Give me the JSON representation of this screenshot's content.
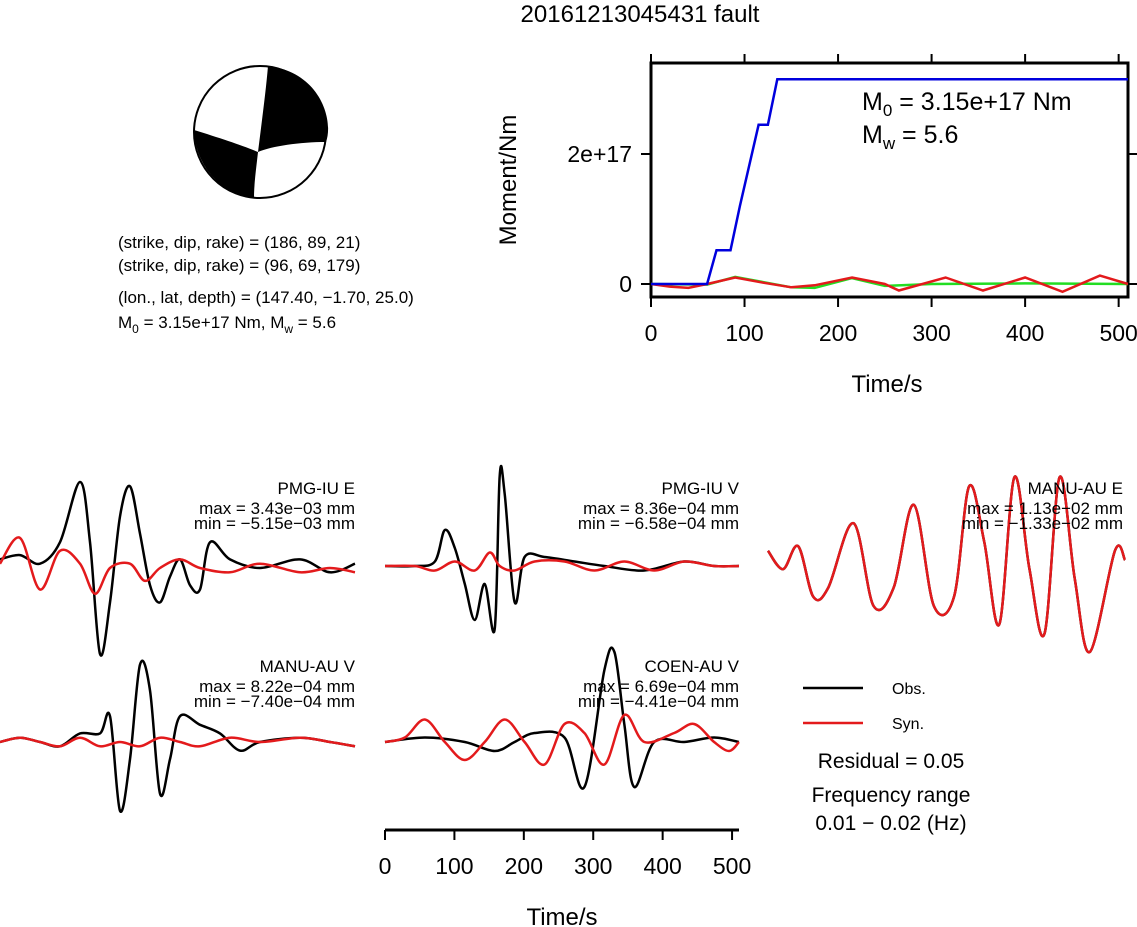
{
  "title": "20161213045431 fault",
  "info": {
    "line1": "(strike, dip, rake) = (186, 89, 21)",
    "line2": "(strike, dip, rake) = (96, 69, 179)",
    "line3": "(lon., lat, depth) = (147.40, −1.70, 25.0)",
    "m0_label": "M",
    "m0_sub": "0",
    "m0_rest": " = 3.15e+17 Nm, M",
    "mw_sub": "w",
    "mw_rest": " = 5.6"
  },
  "colors": {
    "obs": "#000000",
    "syn": "#e31a1c",
    "moment": "#0000dd",
    "green": "#22dd22"
  },
  "chart_data": [
    {
      "type": "line",
      "ylabel": "Moment/Nm",
      "xlabel": "Time/s",
      "xlim": [
        0,
        510
      ],
      "ylim": [
        -2e+16,
        3.4e+17
      ],
      "xticks": [
        "0",
        "100",
        "200",
        "300",
        "400",
        "500"
      ],
      "yticks": [
        "0",
        "2e+17"
      ],
      "annotation": {
        "m0_label": "M",
        "m0_sub": "0",
        "m0_value": " = 3.15e+17 Nm",
        "mw_label": "M",
        "mw_sub": "w",
        "mw_value": " = 5.6"
      },
      "series": [
        {
          "color": "blue",
          "x": [
            0,
            60,
            70,
            85,
            95,
            115,
            125,
            135,
            140,
            510
          ],
          "y": [
            0,
            0,
            5.2e+16,
            5.2e+16,
            1.2e+17,
            2.45e+17,
            2.45e+17,
            3.15e+17,
            3.15e+17,
            3.15e+17
          ]
        },
        {
          "color": "red",
          "x": [
            0,
            20,
            40,
            60,
            90,
            120,
            150,
            175,
            215,
            250,
            265,
            315,
            355,
            400,
            440,
            480,
            510
          ],
          "y": [
            0,
            -4000000000000000.0,
            -6000000000000000.0,
            0,
            1e+16,
            2000000000000000.0,
            -5000000000000000.0,
            -2000000000000000.0,
            1e+16,
            0,
            -1e+16,
            1e+16,
            -1e+16,
            1e+16,
            -1.2e+16,
            1.3e+16,
            0
          ]
        },
        {
          "color": "green",
          "x": [
            0,
            60,
            90,
            120,
            150,
            175,
            215,
            250,
            300,
            400,
            510
          ],
          "y": [
            0,
            -1000000000000000.0,
            1.1e+16,
            3000000000000000.0,
            -5000000000000000.0,
            -6000000000000000.0,
            9000000000000000.0,
            -3000000000000000.0,
            0,
            1000000000000000.0,
            0
          ]
        }
      ]
    },
    {
      "type": "line",
      "xlabel": "Time/s",
      "xlim": [
        0,
        510
      ],
      "xticks": [
        "0",
        "100",
        "200",
        "300",
        "400",
        "500"
      ],
      "traces": [
        {
          "station": "PMG-IU E",
          "max": "max = 3.43e−03 mm",
          "min": "min = −5.15e−03 mm",
          "obs": [
            [
              0,
              0.1
            ],
            [
              20,
              0.15
            ],
            [
              40,
              0.05
            ],
            [
              60,
              0.3
            ],
            [
              80,
              1.0
            ],
            [
              90,
              0.3
            ],
            [
              100,
              -1.0
            ],
            [
              110,
              -0.4
            ],
            [
              120,
              0.6
            ],
            [
              130,
              0.95
            ],
            [
              140,
              0.4
            ],
            [
              150,
              -0.2
            ],
            [
              160,
              -0.4
            ],
            [
              170,
              -0.1
            ],
            [
              180,
              0.1
            ],
            [
              190,
              -0.2
            ],
            [
              200,
              -0.25
            ],
            [
              210,
              0.3
            ],
            [
              230,
              0.1
            ],
            [
              260,
              0.0
            ],
            [
              300,
              0.1
            ],
            [
              330,
              -0.05
            ],
            [
              355,
              0.05
            ]
          ],
          "syn": [
            [
              0,
              0.05
            ],
            [
              20,
              0.35
            ],
            [
              40,
              -0.25
            ],
            [
              60,
              0.2
            ],
            [
              80,
              0.05
            ],
            [
              95,
              -0.3
            ],
            [
              110,
              0.0
            ],
            [
              130,
              0.05
            ],
            [
              145,
              -0.15
            ],
            [
              160,
              0.0
            ],
            [
              180,
              0.1
            ],
            [
              200,
              0.0
            ],
            [
              230,
              -0.05
            ],
            [
              260,
              0.05
            ],
            [
              300,
              -0.05
            ],
            [
              330,
              0.0
            ],
            [
              355,
              -0.05
            ]
          ]
        },
        {
          "station": "PMG-IU V",
          "max": "max = 8.36e−04 mm",
          "min": "min = −6.58e−04 mm",
          "obs": [
            [
              0,
              0.0
            ],
            [
              30,
              0.0
            ],
            [
              50,
              0.05
            ],
            [
              60,
              0.4
            ],
            [
              70,
              0.2
            ],
            [
              80,
              -0.2
            ],
            [
              90,
              -0.6
            ],
            [
              100,
              -0.2
            ],
            [
              110,
              -0.7
            ],
            [
              115,
              1.0
            ],
            [
              120,
              0.8
            ],
            [
              130,
              -0.4
            ],
            [
              140,
              0.1
            ],
            [
              160,
              0.1
            ],
            [
              190,
              0.05
            ],
            [
              220,
              0.0
            ],
            [
              260,
              -0.05
            ],
            [
              300,
              0.05
            ],
            [
              330,
              0.0
            ],
            [
              355,
              0.0
            ]
          ],
          "syn": [
            [
              0,
              0.0
            ],
            [
              30,
              0.0
            ],
            [
              50,
              -0.05
            ],
            [
              70,
              0.05
            ],
            [
              90,
              -0.05
            ],
            [
              105,
              0.15
            ],
            [
              115,
              0.0
            ],
            [
              130,
              -0.05
            ],
            [
              150,
              0.05
            ],
            [
              180,
              0.05
            ],
            [
              210,
              -0.05
            ],
            [
              240,
              0.05
            ],
            [
              270,
              -0.05
            ],
            [
              300,
              0.05
            ],
            [
              330,
              0.0
            ],
            [
              355,
              0.0
            ]
          ]
        },
        {
          "station": "MANU-AU E",
          "max": "max = 1.13e−02 mm",
          "min": "min = −1.33e−02 mm",
          "obs": [
            [
              0,
              0.1
            ],
            [
              15,
              -0.1
            ],
            [
              30,
              0.15
            ],
            [
              45,
              -0.4
            ],
            [
              60,
              -0.3
            ],
            [
              85,
              0.4
            ],
            [
              105,
              -0.5
            ],
            [
              125,
              -0.3
            ],
            [
              145,
              0.6
            ],
            [
              165,
              -0.5
            ],
            [
              185,
              -0.4
            ],
            [
              200,
              0.8
            ],
            [
              215,
              0.2
            ],
            [
              230,
              -0.7
            ],
            [
              245,
              0.9
            ],
            [
              260,
              -0.1
            ],
            [
              275,
              -0.8
            ],
            [
              290,
              0.9
            ],
            [
              305,
              -0.2
            ],
            [
              320,
              -1.0
            ],
            [
              345,
              0.1
            ],
            [
              355,
              0.0
            ]
          ],
          "syn": [
            [
              0,
              0.1
            ],
            [
              15,
              -0.1
            ],
            [
              30,
              0.15
            ],
            [
              45,
              -0.4
            ],
            [
              60,
              -0.3
            ],
            [
              85,
              0.4
            ],
            [
              105,
              -0.5
            ],
            [
              125,
              -0.3
            ],
            [
              145,
              0.6
            ],
            [
              165,
              -0.5
            ],
            [
              185,
              -0.4
            ],
            [
              200,
              0.8
            ],
            [
              215,
              0.2
            ],
            [
              230,
              -0.7
            ],
            [
              245,
              0.9
            ],
            [
              260,
              -0.1
            ],
            [
              275,
              -0.8
            ],
            [
              290,
              0.9
            ],
            [
              305,
              -0.2
            ],
            [
              320,
              -1.0
            ],
            [
              345,
              0.1
            ],
            [
              355,
              0.0
            ]
          ]
        },
        {
          "station": "MANU-AU V",
          "max": "max = 8.22e−04 mm",
          "min": "min = −7.40e−04 mm",
          "obs": [
            [
              0,
              0.0
            ],
            [
              20,
              0.05
            ],
            [
              40,
              0.0
            ],
            [
              60,
              -0.05
            ],
            [
              80,
              0.1
            ],
            [
              100,
              0.1
            ],
            [
              110,
              0.3
            ],
            [
              120,
              -0.8
            ],
            [
              130,
              -0.2
            ],
            [
              140,
              0.9
            ],
            [
              150,
              0.6
            ],
            [
              160,
              -0.6
            ],
            [
              170,
              -0.2
            ],
            [
              180,
              0.3
            ],
            [
              200,
              0.2
            ],
            [
              220,
              0.1
            ],
            [
              240,
              -0.1
            ],
            [
              260,
              0.0
            ],
            [
              300,
              0.05
            ],
            [
              330,
              0.0
            ],
            [
              355,
              -0.05
            ]
          ],
          "syn": [
            [
              0,
              0.0
            ],
            [
              20,
              0.05
            ],
            [
              40,
              0.0
            ],
            [
              60,
              -0.05
            ],
            [
              80,
              0.05
            ],
            [
              100,
              -0.05
            ],
            [
              120,
              0.0
            ],
            [
              140,
              -0.05
            ],
            [
              160,
              0.05
            ],
            [
              180,
              0.0
            ],
            [
              200,
              -0.05
            ],
            [
              230,
              0.05
            ],
            [
              260,
              0.0
            ],
            [
              300,
              0.05
            ],
            [
              330,
              0.0
            ],
            [
              355,
              -0.05
            ]
          ]
        },
        {
          "station": "COEN-AU V",
          "max": "max = 6.69e−04 mm",
          "min": "min = −4.41e−04 mm",
          "obs": [
            [
              0,
              0.0
            ],
            [
              40,
              0.05
            ],
            [
              80,
              0.0
            ],
            [
              110,
              -0.1
            ],
            [
              130,
              0.0
            ],
            [
              150,
              0.1
            ],
            [
              180,
              0.05
            ],
            [
              200,
              -0.5
            ],
            [
              220,
              0.8
            ],
            [
              230,
              1.0
            ],
            [
              240,
              0.2
            ],
            [
              250,
              -0.5
            ],
            [
              270,
              0.0
            ],
            [
              300,
              0.0
            ],
            [
              330,
              0.05
            ],
            [
              355,
              0.0
            ]
          ],
          "syn": [
            [
              0,
              0.0
            ],
            [
              20,
              0.05
            ],
            [
              40,
              0.25
            ],
            [
              60,
              0.0
            ],
            [
              80,
              -0.2
            ],
            [
              100,
              0.0
            ],
            [
              120,
              0.25
            ],
            [
              140,
              0.0
            ],
            [
              160,
              -0.25
            ],
            [
              180,
              0.2
            ],
            [
              200,
              0.1
            ],
            [
              220,
              -0.25
            ],
            [
              240,
              0.3
            ],
            [
              260,
              0.0
            ],
            [
              290,
              0.1
            ],
            [
              310,
              0.2
            ],
            [
              330,
              0.0
            ],
            [
              345,
              -0.1
            ],
            [
              355,
              0.0
            ]
          ]
        }
      ]
    }
  ],
  "legend": {
    "obs": "Obs.",
    "syn": "Syn."
  },
  "residual": "Residual = 0.05",
  "freq_label": "Frequency range",
  "freq_value": "0.01 − 0.02 (Hz)"
}
